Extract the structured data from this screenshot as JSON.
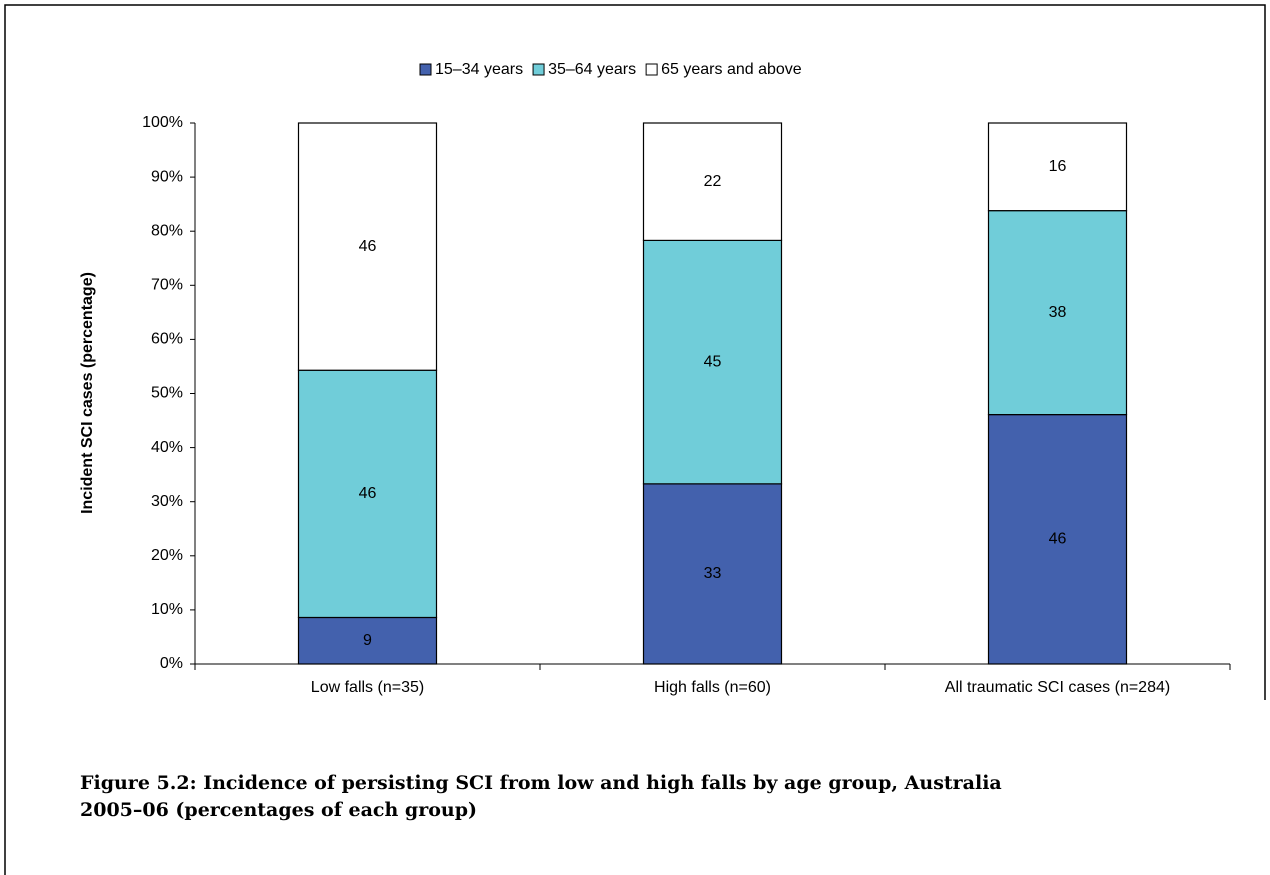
{
  "chart_data": {
    "type": "stacked-bar",
    "y_label": "Incident SCI cases (percentage)",
    "caption": [
      "Figure 5.2: Incidence of persisting SCI from low and high falls by age group, Australia",
      "2005–06 (percentages of each group)"
    ],
    "categories": [
      "Low falls (n=35)",
      "High falls (n=60)",
      "All traumatic SCI cases (n=284)"
    ],
    "series": [
      {
        "name": "15–34 years",
        "color": "#4361ad",
        "values": [
          8.6,
          33.3,
          46.1
        ],
        "value_labels": [
          "9",
          "33",
          "46"
        ]
      },
      {
        "name": "35–64 years",
        "color": "#70cdd9",
        "values": [
          45.7,
          45,
          37.7
        ],
        "value_labels": [
          "46",
          "45",
          "38"
        ]
      },
      {
        "name": "65 years and above",
        "color": "#ffffff",
        "values": [
          45.7,
          21.7,
          16.2
        ],
        "value_labels": [
          "46",
          "22",
          "16"
        ]
      }
    ],
    "ylim": [
      0,
      100
    ],
    "yticks": [
      {
        "value": 0,
        "label": "0%"
      },
      {
        "value": 10,
        "label": "10%"
      },
      {
        "value": 20,
        "label": "20%"
      },
      {
        "value": 30,
        "label": "30%"
      },
      {
        "value": 40,
        "label": "40%"
      },
      {
        "value": 50,
        "label": "50%"
      },
      {
        "value": 60,
        "label": "60%"
      },
      {
        "value": 70,
        "label": "70%"
      },
      {
        "value": 80,
        "label": "80%"
      },
      {
        "value": 90,
        "label": "90%"
      },
      {
        "value": 100,
        "label": "100%"
      }
    ]
  }
}
